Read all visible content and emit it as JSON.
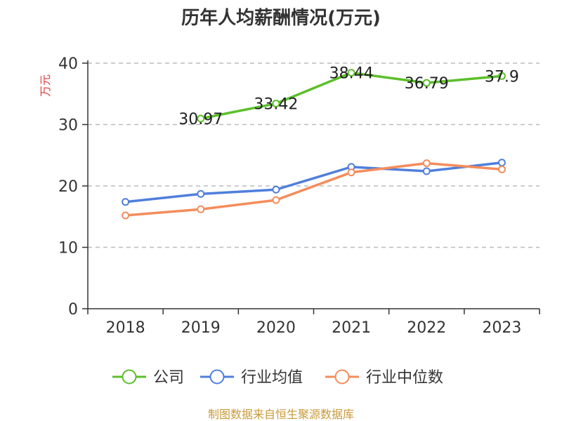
{
  "chart_data": {
    "type": "line",
    "title": "历年人均薪酬情况(万元)",
    "ylabel": "万元",
    "xlabel": "",
    "categories": [
      "2018",
      "2019",
      "2020",
      "2021",
      "2022",
      "2023"
    ],
    "ylim": [
      0,
      40
    ],
    "yticks": [
      0,
      10,
      20,
      30,
      40
    ],
    "grid": true,
    "legend_position": "bottom",
    "series": [
      {
        "name": "公司",
        "color": "#5cbf2a",
        "values": [
          null,
          30.97,
          33.42,
          38.44,
          36.79,
          37.9
        ],
        "labels": [
          "",
          "30.97",
          "33.42",
          "38.44",
          "36.79",
          "37.9"
        ],
        "show_labels": true
      },
      {
        "name": "行业均值",
        "color": "#4f7fdc",
        "values": [
          17.4,
          18.7,
          19.4,
          23.1,
          22.4,
          23.8
        ],
        "show_labels": false
      },
      {
        "name": "行业中位数",
        "color": "#f48c5b",
        "values": [
          15.2,
          16.2,
          17.7,
          22.2,
          23.7,
          22.7
        ],
        "show_labels": false
      }
    ]
  },
  "source_text": "制图数据来自恒生聚源数据库",
  "colors": {
    "ylabel": "#e03b3b",
    "source": "#c89a3a",
    "grid": "#bbbbbb",
    "axis": "#333333"
  }
}
